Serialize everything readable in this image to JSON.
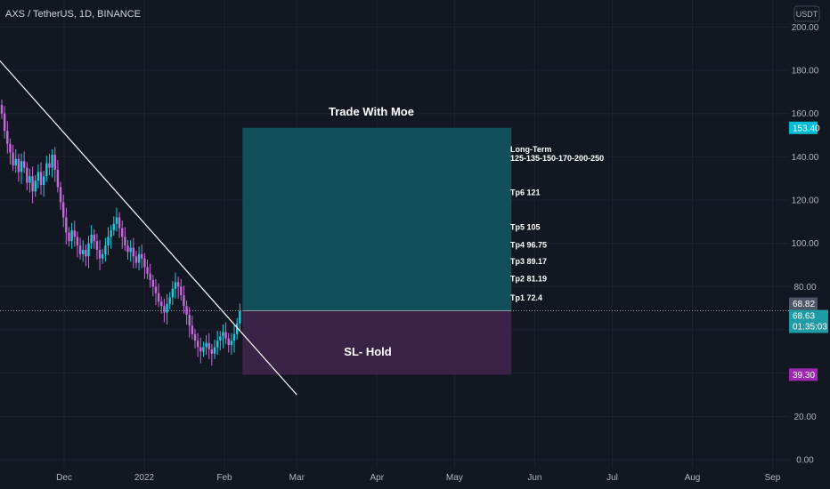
{
  "header": {
    "symbol_line": "AXS / TetherUS, 1D, BINANCE"
  },
  "axis": {
    "currency_button": "USDT"
  },
  "colors": {
    "background": "#131722",
    "axis_text": "#b2b5be",
    "up_candle": "#26c6da",
    "down_candle": "#c36bd9",
    "target_zone": "#124f5a",
    "stop_zone": "#3b2347",
    "trendline": "#ffffff",
    "price_badge_blue": "#00bcd4",
    "price_badge_purple": "#9c27b0",
    "last_close_badge": "#505565",
    "current_price_badge": "#1e9ca6"
  },
  "annotations": {
    "zone_title": "Trade With Moe",
    "stop_label": "SL- Hold",
    "longterm_title": "Long-Term",
    "longterm_levels": "125-135-150-170-200-250",
    "tp_labels": [
      "Tp6 121",
      "Tp5 105",
      "Tp4 96.75",
      "Tp3 89.17",
      "Tp2 81.19",
      "Tp1 72.4"
    ]
  },
  "price_badges": {
    "target": "153.40",
    "last_close": "68.82",
    "current": "68.63",
    "countdown": "01:35:03",
    "stop": "39.30"
  },
  "chart_data": {
    "type": "candlestick",
    "title": "AXS / TetherUS, 1D, BINANCE",
    "y_ticks": [
      "0.00",
      "20.00",
      "40.00",
      "60.00",
      "80.00",
      "100.00",
      "120.00",
      "140.00",
      "160.00",
      "180.00",
      "200.00"
    ],
    "ylim": [
      0,
      210
    ],
    "x_ticks": [
      "Dec",
      "2022",
      "Feb",
      "Mar",
      "Apr",
      "May",
      "Jun",
      "Jul",
      "Aug",
      "Sep"
    ],
    "x_tick_dates": [
      "2021-12-01",
      "2022-01-01",
      "2022-02-01",
      "2022-03-01",
      "2022-04-01",
      "2022-05-01",
      "2022-06-01",
      "2022-07-01",
      "2022-08-01",
      "2022-09-01"
    ],
    "candles_close": [
      160,
      152,
      146,
      142,
      136,
      139,
      133,
      138,
      135,
      128,
      131,
      124,
      129,
      133,
      127,
      131,
      137,
      135,
      141,
      134,
      126,
      119,
      112,
      105,
      101,
      106,
      103,
      99,
      95,
      97,
      94,
      100,
      104,
      101,
      97,
      93,
      95,
      99,
      103,
      106,
      109,
      112,
      107,
      103,
      99,
      96,
      98,
      94,
      91,
      95,
      93,
      89,
      86,
      83,
      80,
      77,
      73,
      71,
      68,
      72,
      75,
      79,
      82,
      80,
      76,
      71,
      67,
      62,
      58,
      55,
      52,
      50,
      52,
      54,
      51,
      49,
      52,
      55,
      57,
      59,
      56,
      53,
      55,
      58,
      63,
      68.63
    ],
    "target_zone": {
      "start_date": "2022-02-08",
      "end_date": "2022-05-23",
      "top": 153.4,
      "entry": 68.82
    },
    "stop_zone": {
      "start_date": "2022-02-08",
      "end_date": "2022-05-23",
      "top": 68.82,
      "bottom": 39.3
    },
    "trendline": {
      "from": {
        "date": "2021-11-02",
        "price": 190
      },
      "to": {
        "date": "2022-03-01",
        "price": 30
      }
    },
    "take_profit_levels": [
      121,
      105,
      96.75,
      89.17,
      81.19,
      72.4
    ],
    "long_term_levels": [
      125,
      135,
      150,
      170,
      200,
      250
    ]
  }
}
